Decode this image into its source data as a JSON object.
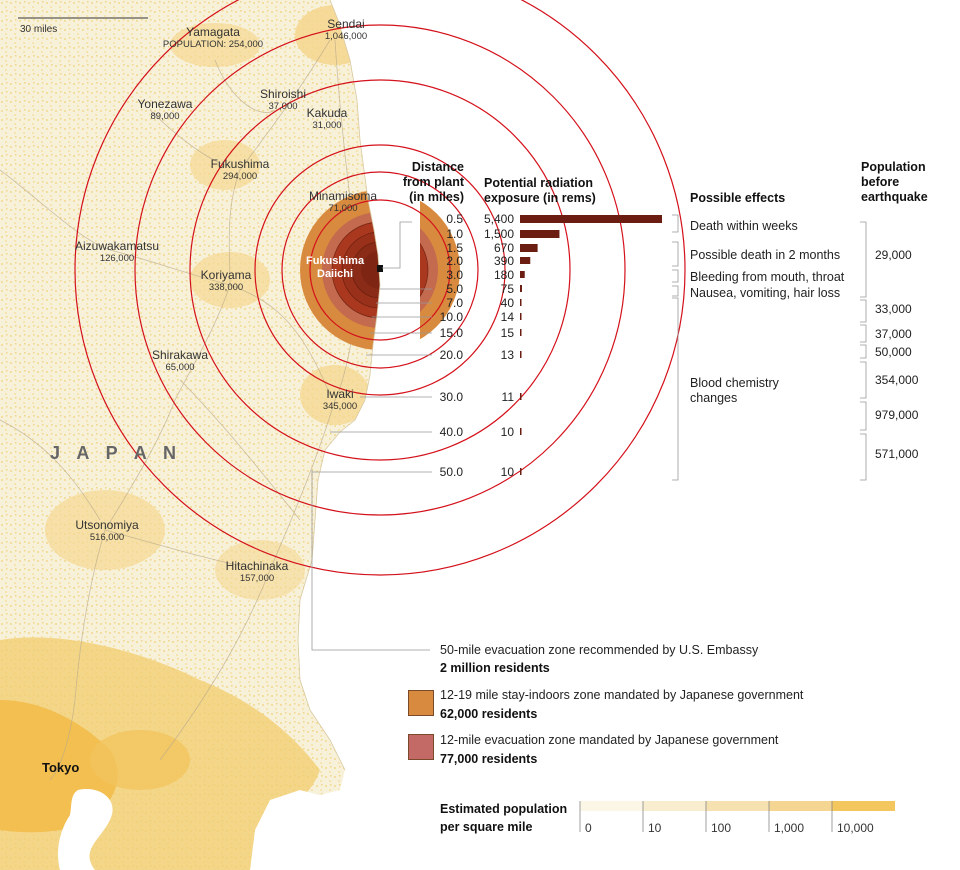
{
  "map": {
    "scale_label": "30 miles",
    "country_label": "J A P A N",
    "plant_label_1": "Fukushima",
    "plant_label_2": "Daiichi",
    "cities": [
      {
        "name": "Sendai",
        "pop": "1,046,000"
      },
      {
        "name": "Yamagata",
        "pop": "POPULATION: 254,000"
      },
      {
        "name": "Shiroishi",
        "pop": "37,000"
      },
      {
        "name": "Yonezawa",
        "pop": "89,000"
      },
      {
        "name": "Kakuda",
        "pop": "31,000"
      },
      {
        "name": "Fukushima",
        "pop": "294,000"
      },
      {
        "name": "Minamisoma",
        "pop": "71,000"
      },
      {
        "name": "Aizuwakamatsu",
        "pop": "126,000"
      },
      {
        "name": "Koriyama",
        "pop": "338,000"
      },
      {
        "name": "Shirakawa",
        "pop": "65,000"
      },
      {
        "name": "Iwaki",
        "pop": "345,000"
      },
      {
        "name": "Utsonomiya",
        "pop": "516,000"
      },
      {
        "name": "Hitachinaka",
        "pop": "157,000"
      },
      {
        "name": "Tokyo",
        "pop": ""
      }
    ]
  },
  "table": {
    "distance_header": [
      "Distance",
      "from plant",
      "(in miles)"
    ],
    "exposure_header": [
      "Potential radiation",
      "exposure (in rems)"
    ],
    "effects_header": "Possible effects",
    "population_header": [
      "Population",
      "before",
      "earthquake"
    ],
    "rows": [
      {
        "distance": "0.5",
        "rems": "5,400",
        "value": 5400
      },
      {
        "distance": "1.0",
        "rems": "1,500",
        "value": 1500
      },
      {
        "distance": "1.5",
        "rems": "670",
        "value": 670
      },
      {
        "distance": "2.0",
        "rems": "390",
        "value": 390
      },
      {
        "distance": "3.0",
        "rems": "180",
        "value": 180
      },
      {
        "distance": "5.0",
        "rems": "75",
        "value": 75
      },
      {
        "distance": "7.0",
        "rems": "40",
        "value": 40
      },
      {
        "distance": "10.0",
        "rems": "14",
        "value": 14
      },
      {
        "distance": "15.0",
        "rems": "15",
        "value": 15
      },
      {
        "distance": "20.0",
        "rems": "13",
        "value": 13
      },
      {
        "distance": "30.0",
        "rems": "11",
        "value": 11
      },
      {
        "distance": "40.0",
        "rems": "10",
        "value": 10
      },
      {
        "distance": "50.0",
        "rems": "10",
        "value": 10
      }
    ],
    "effects": [
      "Death within weeks",
      "Possible death in 2 months",
      "Bleeding from mouth, throat",
      "Nausea, vomiting, hair loss",
      "Blood chemistry",
      "changes"
    ],
    "populations": [
      "29,000",
      "33,000",
      "37,000",
      "50,000",
      "354,000",
      "979,000",
      "571,000"
    ]
  },
  "legend": {
    "embassy_zone": "50-mile evacuation zone recommended by U.S. Embassy",
    "embassy_residents": "2 million residents",
    "indoor_zone": "12-19 mile stay-indoors zone mandated by Japanese government",
    "indoor_residents": "62,000 residents",
    "evac_zone": "12-mile evacuation zone mandated by Japanese government",
    "evac_residents": "77,000 residents",
    "density_title_1": "Estimated population",
    "density_title_2": "per square mile",
    "density_ticks": [
      "0",
      "10",
      "100",
      "1,000",
      "10,000"
    ]
  },
  "colors": {
    "ring": "#d4111b",
    "bar": "#6b1d11",
    "indoor": "#d88a3e",
    "evac": "#c46a66",
    "zone_inner": "#9c2f1c",
    "land": "#f7f0d6",
    "urban": "#f2c05a"
  }
}
